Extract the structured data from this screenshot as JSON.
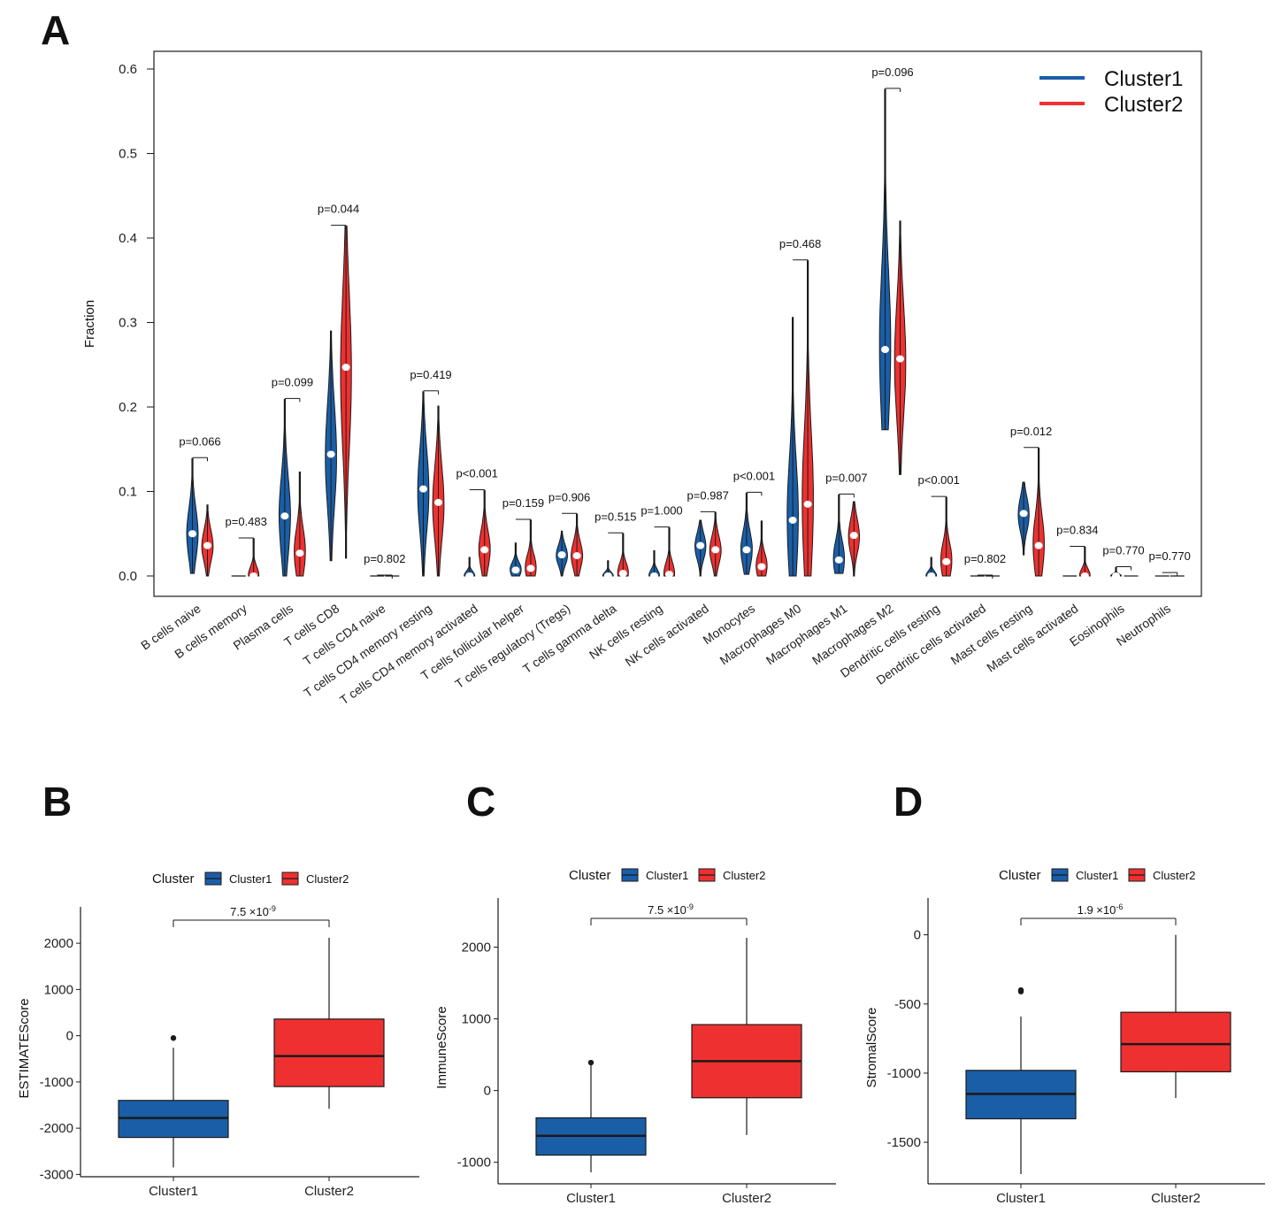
{
  "colors": {
    "cluster1": "#1a5ea8",
    "cluster2": "#ee3130",
    "outline": "#1a1a1a"
  },
  "panels": {
    "a": "A",
    "b": "B",
    "c": "C",
    "d": "D"
  },
  "chart_data": [
    {
      "id": "A",
      "type": "violin",
      "ylabel": "Fraction",
      "ylim": [
        0,
        0.6
      ],
      "yticks": [
        "0.0",
        "0.1",
        "0.2",
        "0.3",
        "0.4",
        "0.5",
        "0.6"
      ],
      "legend": {
        "position": "top-right",
        "entries": [
          "Cluster1",
          "Cluster2"
        ]
      },
      "categories": [
        {
          "name": "B cells naive",
          "p": "p=0.066",
          "c1": {
            "min": 0.003,
            "max": 0.139,
            "median": 0.05
          },
          "c2": {
            "min": 0.0,
            "max": 0.084,
            "median": 0.036
          }
        },
        {
          "name": "B cells memory",
          "p": "p=0.483",
          "c1": {
            "min": 0.0,
            "max": 0.0,
            "median": 0.0
          },
          "c2": {
            "min": 0.0,
            "max": 0.044,
            "median": 0.0
          }
        },
        {
          "name": "Plasma cells",
          "p": "p=0.099",
          "c1": {
            "min": 0.0,
            "max": 0.209,
            "median": 0.071
          },
          "c2": {
            "min": 0.0,
            "max": 0.123,
            "median": 0.027
          }
        },
        {
          "name": "T cells CD8",
          "p": "p=0.044",
          "c1": {
            "min": 0.018,
            "max": 0.29,
            "median": 0.144
          },
          "c2": {
            "min": 0.021,
            "max": 0.414,
            "median": 0.247
          }
        },
        {
          "name": "T cells CD4 naive",
          "p": "p=0.802",
          "c1": {
            "min": 0.0,
            "max": 0.0,
            "median": 0.0
          },
          "c2": {
            "min": 0.0,
            "max": 0.0,
            "median": 0.0
          }
        },
        {
          "name": "T cells CD4 memory resting",
          "p": "p=0.419",
          "c1": {
            "min": 0.0,
            "max": 0.218,
            "median": 0.103
          },
          "c2": {
            "min": 0.0,
            "max": 0.201,
            "median": 0.087
          }
        },
        {
          "name": "T cells CD4 memory activated",
          "p": "p<0.001",
          "c1": {
            "min": 0.0,
            "max": 0.022,
            "median": 0.0
          },
          "c2": {
            "min": 0.0,
            "max": 0.101,
            "median": 0.031
          }
        },
        {
          "name": "T cells follicular helper",
          "p": "p=0.159",
          "c1": {
            "min": 0.0,
            "max": 0.039,
            "median": 0.007
          },
          "c2": {
            "min": 0.0,
            "max": 0.066,
            "median": 0.009
          }
        },
        {
          "name": "T cells regulatory (Tregs)",
          "p": "p=0.906",
          "c1": {
            "min": 0.0,
            "max": 0.053,
            "median": 0.025
          },
          "c2": {
            "min": 0.0,
            "max": 0.073,
            "median": 0.024
          }
        },
        {
          "name": "T cells gamma delta",
          "p": "p=0.515",
          "c1": {
            "min": 0.0,
            "max": 0.018,
            "median": 0.0
          },
          "c2": {
            "min": 0.0,
            "max": 0.05,
            "median": 0.003
          }
        },
        {
          "name": "NK cells resting",
          "p": "p=1.000",
          "c1": {
            "min": 0.0,
            "max": 0.03,
            "median": 0.0
          },
          "c2": {
            "min": 0.0,
            "max": 0.057,
            "median": 0.002
          }
        },
        {
          "name": "NK cells activated",
          "p": "p=0.987",
          "c1": {
            "min": 0.0,
            "max": 0.066,
            "median": 0.036
          },
          "c2": {
            "min": 0.0,
            "max": 0.075,
            "median": 0.031
          }
        },
        {
          "name": "Monocytes",
          "p": "p<0.001",
          "c1": {
            "min": 0.002,
            "max": 0.098,
            "median": 0.031
          },
          "c2": {
            "min": 0.0,
            "max": 0.065,
            "median": 0.011
          }
        },
        {
          "name": "Macrophages M0",
          "p": "p=0.468",
          "c1": {
            "min": 0.0,
            "max": 0.306,
            "median": 0.066
          },
          "c2": {
            "min": 0.0,
            "max": 0.373,
            "median": 0.085
          }
        },
        {
          "name": "Macrophages M1",
          "p": "p=0.007",
          "c1": {
            "min": 0.003,
            "max": 0.096,
            "median": 0.019
          },
          "c2": {
            "min": 0.0,
            "max": 0.088,
            "median": 0.048
          }
        },
        {
          "name": "Macrophages M2",
          "p": "p=0.096",
          "c1": {
            "min": 0.173,
            "max": 0.576,
            "median": 0.268
          },
          "c2": {
            "min": 0.12,
            "max": 0.42,
            "median": 0.257
          }
        },
        {
          "name": "Dendritic cells resting",
          "p": "p<0.001",
          "c1": {
            "min": 0.0,
            "max": 0.022,
            "median": 0.0
          },
          "c2": {
            "min": 0.0,
            "max": 0.093,
            "median": 0.017
          }
        },
        {
          "name": "Dendritic cells activated",
          "p": "p=0.802",
          "c1": {
            "min": 0.0,
            "max": 0.0,
            "median": 0.0
          },
          "c2": {
            "min": 0.0,
            "max": 0.0,
            "median": 0.0
          }
        },
        {
          "name": "Mast cells resting",
          "p": "p=0.012",
          "c1": {
            "min": 0.025,
            "max": 0.111,
            "median": 0.074
          },
          "c2": {
            "min": 0.0,
            "max": 0.151,
            "median": 0.036
          }
        },
        {
          "name": "Mast cells activated",
          "p": "p=0.834",
          "c1": {
            "min": 0.0,
            "max": 0.0,
            "median": 0.0
          },
          "c2": {
            "min": 0.0,
            "max": 0.034,
            "median": 0.0
          }
        },
        {
          "name": "Eosinophils",
          "p": "p=0.770",
          "c1": {
            "min": 0.0,
            "max": 0.01,
            "median": 0.0
          },
          "c2": {
            "min": 0.0,
            "max": 0.0,
            "median": 0.0
          }
        },
        {
          "name": "Neutrophils",
          "p": "p=0.770",
          "c1": {
            "min": 0.0,
            "max": 0.0,
            "median": 0.0
          },
          "c2": {
            "min": 0.0,
            "max": 0.003,
            "median": 0.0
          }
        }
      ]
    },
    {
      "id": "B",
      "type": "box",
      "ylabel": "ESTIMATEScore",
      "ylim": [
        -3050,
        2500
      ],
      "yticks": [
        -3000,
        -2000,
        -1000,
        0,
        1000,
        2000
      ],
      "legend_title": "Cluster",
      "legend": [
        "Cluster1",
        "Cluster2"
      ],
      "categories": [
        "Cluster1",
        "Cluster2"
      ],
      "pvalue": {
        "mantissa": "7.5",
        "exponent": "-9"
      },
      "boxes": [
        {
          "name": "Cluster1",
          "wmin": -2850,
          "q1": -2200,
          "median": -1780,
          "q3": -1400,
          "wmax": -260,
          "outliers": [
            -50
          ]
        },
        {
          "name": "Cluster2",
          "wmin": -1580,
          "q1": -1100,
          "median": -440,
          "q3": 360,
          "wmax": 2120,
          "outliers": []
        }
      ]
    },
    {
      "id": "C",
      "type": "box",
      "ylabel": "ImmuneScore",
      "ylim": [
        -1300,
        2500
      ],
      "yticks": [
        -1000,
        0,
        1000,
        2000
      ],
      "legend_title": "Cluster",
      "legend": [
        "Cluster1",
        "Cluster2"
      ],
      "categories": [
        "Cluster1",
        "Cluster2"
      ],
      "pvalue": {
        "mantissa": "7.5",
        "exponent": "-9"
      },
      "boxes": [
        {
          "name": "Cluster1",
          "wmin": -1140,
          "q1": -900,
          "median": -630,
          "q3": -380,
          "wmax": 390,
          "outliers": [
            390
          ]
        },
        {
          "name": "Cluster2",
          "wmin": -620,
          "q1": -100,
          "median": 410,
          "q3": 920,
          "wmax": 2130,
          "outliers": []
        }
      ]
    },
    {
      "id": "D",
      "type": "box",
      "ylabel": "StromalScore",
      "ylim": [
        -1800,
        170
      ],
      "yticks": [
        -1500,
        -1000,
        -500,
        0
      ],
      "legend_title": "Cluster",
      "legend": [
        "Cluster1",
        "Cluster2"
      ],
      "categories": [
        "Cluster1",
        "Cluster2"
      ],
      "pvalue": {
        "mantissa": "1.9",
        "exponent": "-6"
      },
      "boxes": [
        {
          "name": "Cluster1",
          "wmin": -1730,
          "q1": -1330,
          "median": -1150,
          "q3": -980,
          "wmax": -590,
          "outliers": [
            -400,
            -410
          ]
        },
        {
          "name": "Cluster2",
          "wmin": -1180,
          "q1": -990,
          "median": -790,
          "q3": -560,
          "wmax": 0,
          "outliers": []
        }
      ]
    }
  ]
}
